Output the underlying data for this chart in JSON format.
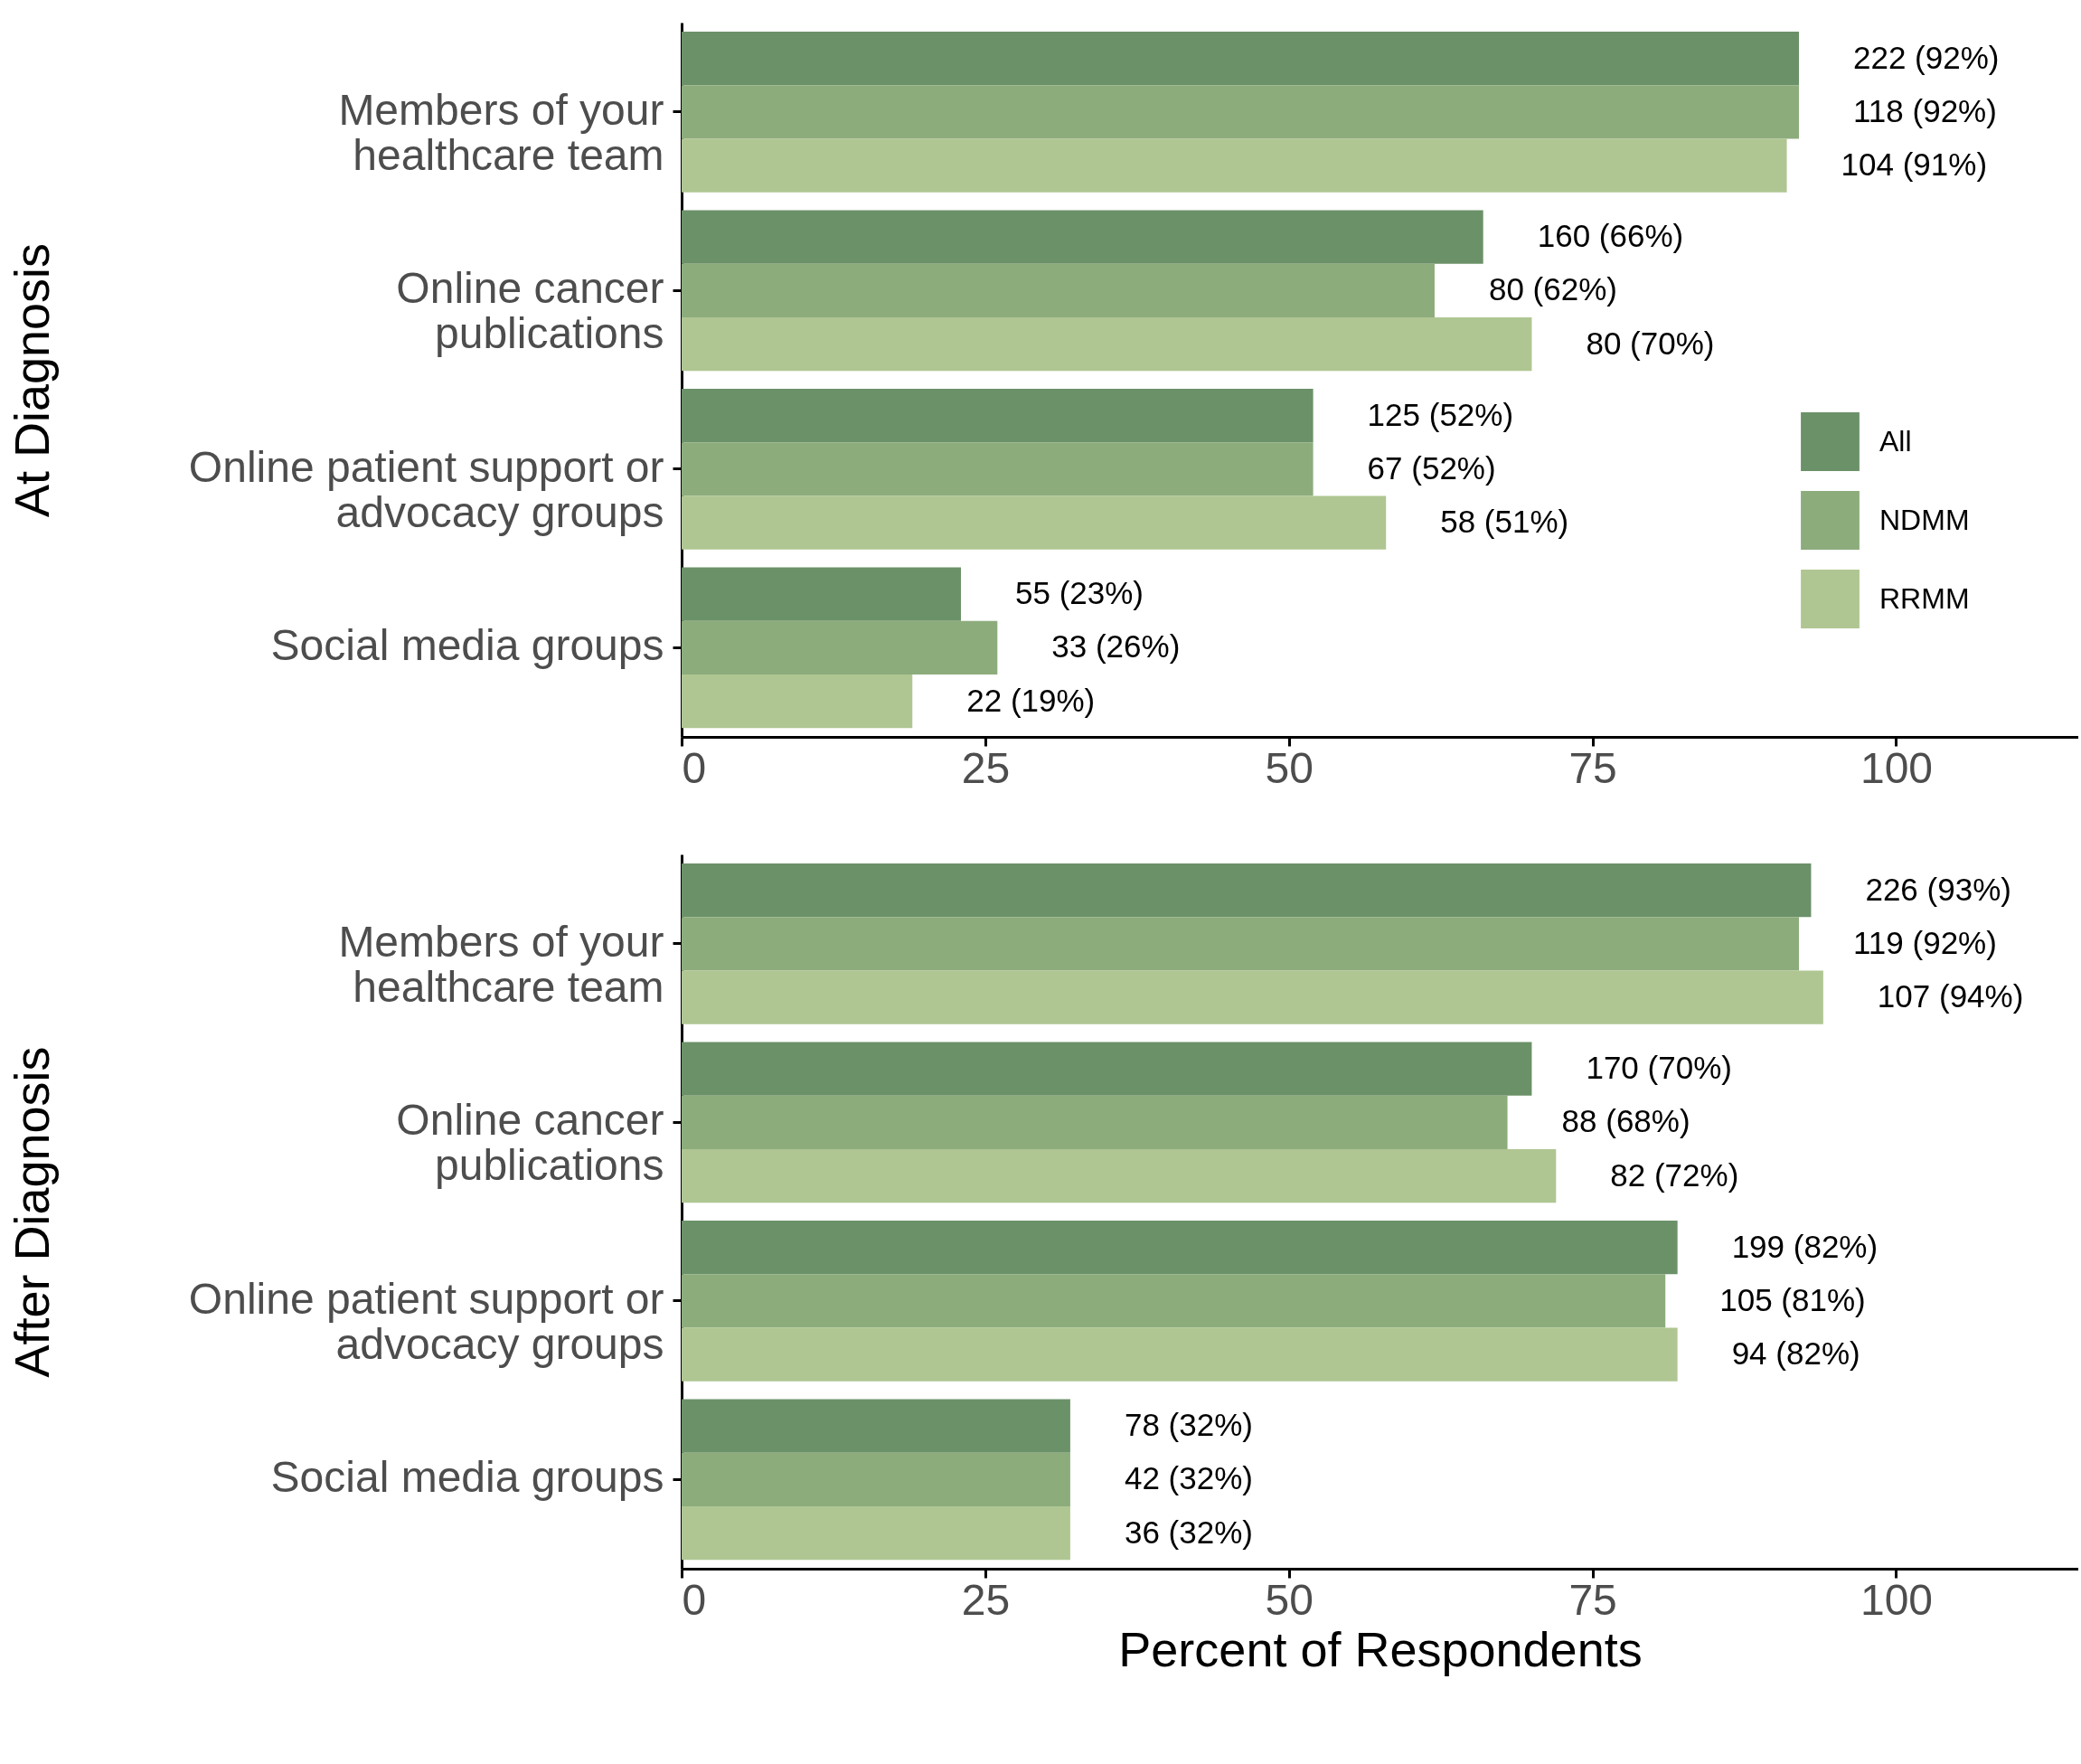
{
  "chart_data": [
    {
      "type": "bar",
      "orientation": "horizontal",
      "ylabel": "At Diagnosis",
      "categories": [
        "Members of your healthcare team",
        "Online cancer publications",
        "Online patient support or advocacy groups",
        "Social media groups"
      ],
      "xlim": [
        0,
        115
      ],
      "xticks": [
        0,
        25,
        50,
        75,
        100
      ],
      "legend": "bottom right",
      "series": [
        {
          "name": "All",
          "color": "#6b9168",
          "values": [
            92,
            66,
            52,
            23
          ],
          "value_labels": [
            "222 (92%)",
            "160 (66%)",
            "125 (52%)",
            "55 (23%)"
          ]
        },
        {
          "name": "NDMM",
          "color": "#8dac7c",
          "values": [
            92,
            62,
            52,
            26
          ],
          "value_labels": [
            "118 (92%)",
            "80 (62%)",
            "67 (52%)",
            "33 (26%)"
          ]
        },
        {
          "name": "RRMM",
          "color": "#afc692",
          "values": [
            91,
            70,
            58,
            19
          ],
          "value_labels": [
            "104 (91%)",
            "80 (70%)",
            "58 (51%)",
            "22 (19%)"
          ]
        }
      ]
    },
    {
      "type": "bar",
      "orientation": "horizontal",
      "ylabel": "After Diagnosis",
      "xlabel": "Percent of Respondents",
      "categories": [
        "Members of your healthcare team",
        "Online cancer publications",
        "Online patient support or advocacy groups",
        "Social media groups"
      ],
      "xlim": [
        0,
        115
      ],
      "xticks": [
        0,
        25,
        50,
        75,
        100
      ],
      "series": [
        {
          "name": "All",
          "color": "#6b9168",
          "values": [
            93,
            70,
            82,
            32
          ],
          "value_labels": [
            "226 (93%)",
            "170 (70%)",
            "199 (82%)",
            "78 (32%)"
          ]
        },
        {
          "name": "NDMM",
          "color": "#8dac7c",
          "values": [
            92,
            68,
            81,
            32
          ],
          "value_labels": [
            "119 (92%)",
            "88 (68%)",
            "105 (81%)",
            "42 (32%)"
          ]
        },
        {
          "name": "RRMM",
          "color": "#afc692",
          "values": [
            94,
            72,
            82,
            32
          ],
          "value_labels": [
            "107 (94%)",
            "82 (72%)",
            "94 (82%)",
            "36 (32%)"
          ]
        }
      ]
    }
  ]
}
